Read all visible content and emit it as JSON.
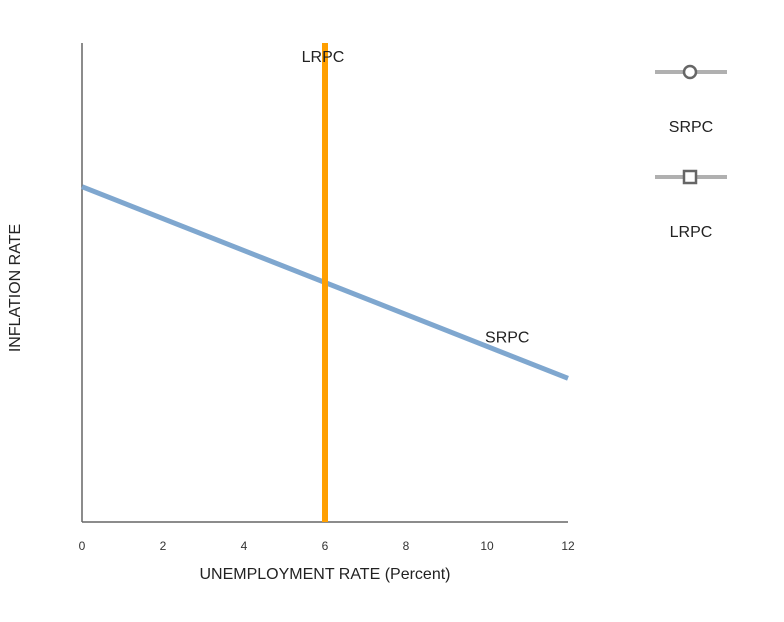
{
  "chart_data": {
    "type": "line",
    "xlabel": "UNEMPLOYMENT RATE (Percent)",
    "ylabel": "INFLATION RATE",
    "xlim": [
      0,
      12
    ],
    "ylim": [
      0,
      10
    ],
    "x_ticks": [
      "0",
      "2",
      "4",
      "6",
      "8",
      "10",
      "12"
    ],
    "y_ticks": [],
    "grid": false,
    "legend_position": "right",
    "series": [
      {
        "name": "SRPC",
        "label": "SRPC",
        "color": "#7fa7cf",
        "marker": "circle",
        "x": [
          0,
          12
        ],
        "y": [
          7,
          3
        ]
      },
      {
        "name": "LRPC",
        "label": "LRPC",
        "color": "#ff9f00",
        "marker": "square",
        "x": [
          6,
          6
        ],
        "y": [
          0,
          10
        ]
      }
    ],
    "legend": [
      {
        "label": "SRPC",
        "marker": "circle",
        "line_color": "#b0b0b0",
        "marker_color": "#666666"
      },
      {
        "label": "LRPC",
        "marker": "square",
        "line_color": "#b0b0b0",
        "marker_color": "#666666"
      }
    ]
  }
}
